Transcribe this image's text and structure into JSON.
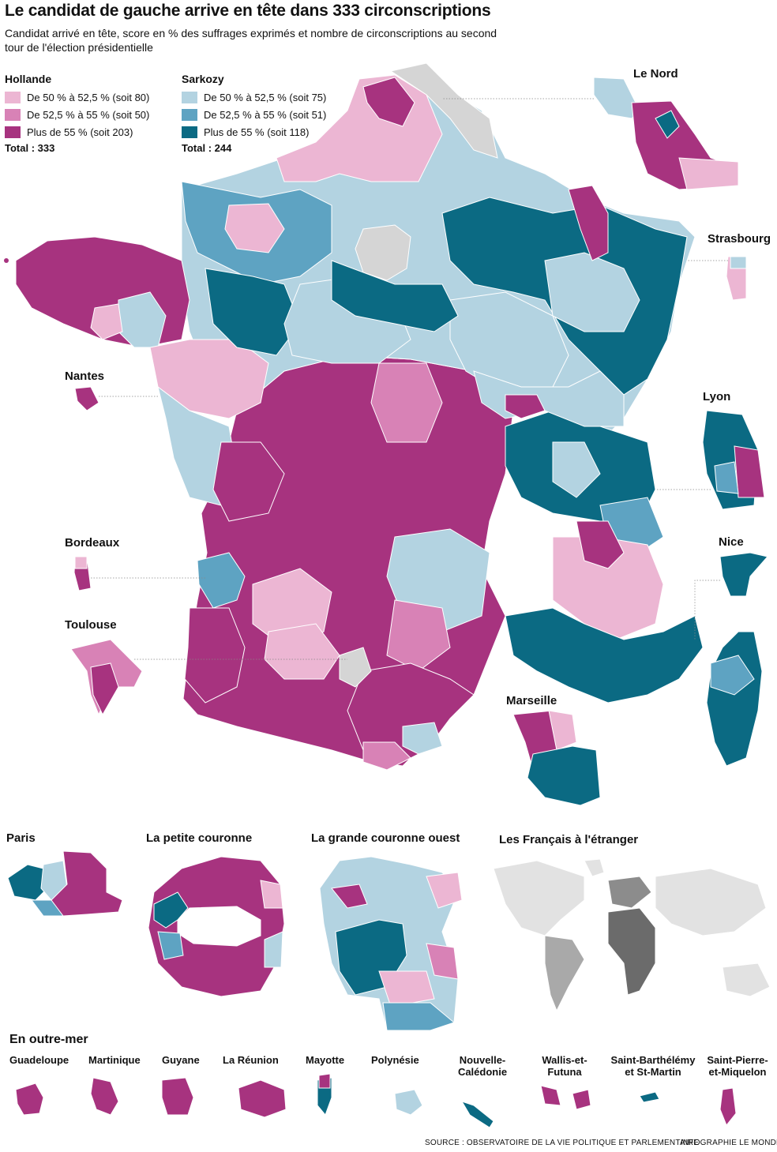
{
  "title": "Le candidat de gauche arrive en tête dans 333 circonscriptions",
  "subtitle": "Candidat arrivé en tête, score en % des suffrages exprimés et nombre de circonscriptions au second tour de l'élection présidentielle",
  "colors": {
    "hollande_low": "#ecb6d3",
    "hollande_mid": "#d882b6",
    "hollande_high": "#a7337f",
    "sarkozy_low": "#b3d3e1",
    "sarkozy_mid": "#5ea3c2",
    "sarkozy_high": "#0b6a83",
    "neutral": "#d5d5d5",
    "foreign": "#e2e2e2"
  },
  "legend": {
    "hollande": {
      "name": "Hollande",
      "items": [
        {
          "label": "De 50 %  à 52,5 % (soit 80)",
          "color": "#ecb6d3"
        },
        {
          "label": "De 52,5 % à 55 % (soit 50)",
          "color": "#d882b6"
        },
        {
          "label": "Plus de 55 % (soit 203)",
          "color": "#a7337f"
        }
      ],
      "total": "Total : 333"
    },
    "sarkozy": {
      "name": "Sarkozy",
      "items": [
        {
          "label": "De 50 % à 52,5 % (soit 75)",
          "color": "#b3d3e1"
        },
        {
          "label": "De 52,5 % à 55 % (soit 51)",
          "color": "#5ea3c2"
        },
        {
          "label": "Plus de 55 % (soit 118)",
          "color": "#0b6a83"
        }
      ],
      "total": "Total : 244"
    }
  },
  "insets": {
    "le_nord": "Le Nord",
    "strasbourg": "Strasbourg",
    "lyon": "Lyon",
    "nice": "Nice",
    "marseille": "Marseille",
    "nantes": "Nantes",
    "bordeaux": "Bordeaux",
    "toulouse": "Toulouse"
  },
  "bottom_maps": {
    "paris": "Paris",
    "petite_couronne": "La petite couronne",
    "grande_couronne": "La grande couronne ouest",
    "etranger": "Les Français à l'étranger"
  },
  "outre_mer": {
    "title": "En outre-mer",
    "territories": [
      "Guadeloupe",
      "Martinique",
      "Guyane",
      "La Réunion",
      "Mayotte",
      "Polynésie",
      "Nouvelle-Calédonie",
      "Wallis-et-Futuna",
      "Saint-Barthélémy et St-Martin",
      "Saint-Pierre-et-Miquelon"
    ]
  },
  "source": "SOURCE : OBSERVATOIRE DE LA VIE POLITIQUE ET PARLEMENTAIRE",
  "credit": "INFOGRAPHIE LE MONDE"
}
